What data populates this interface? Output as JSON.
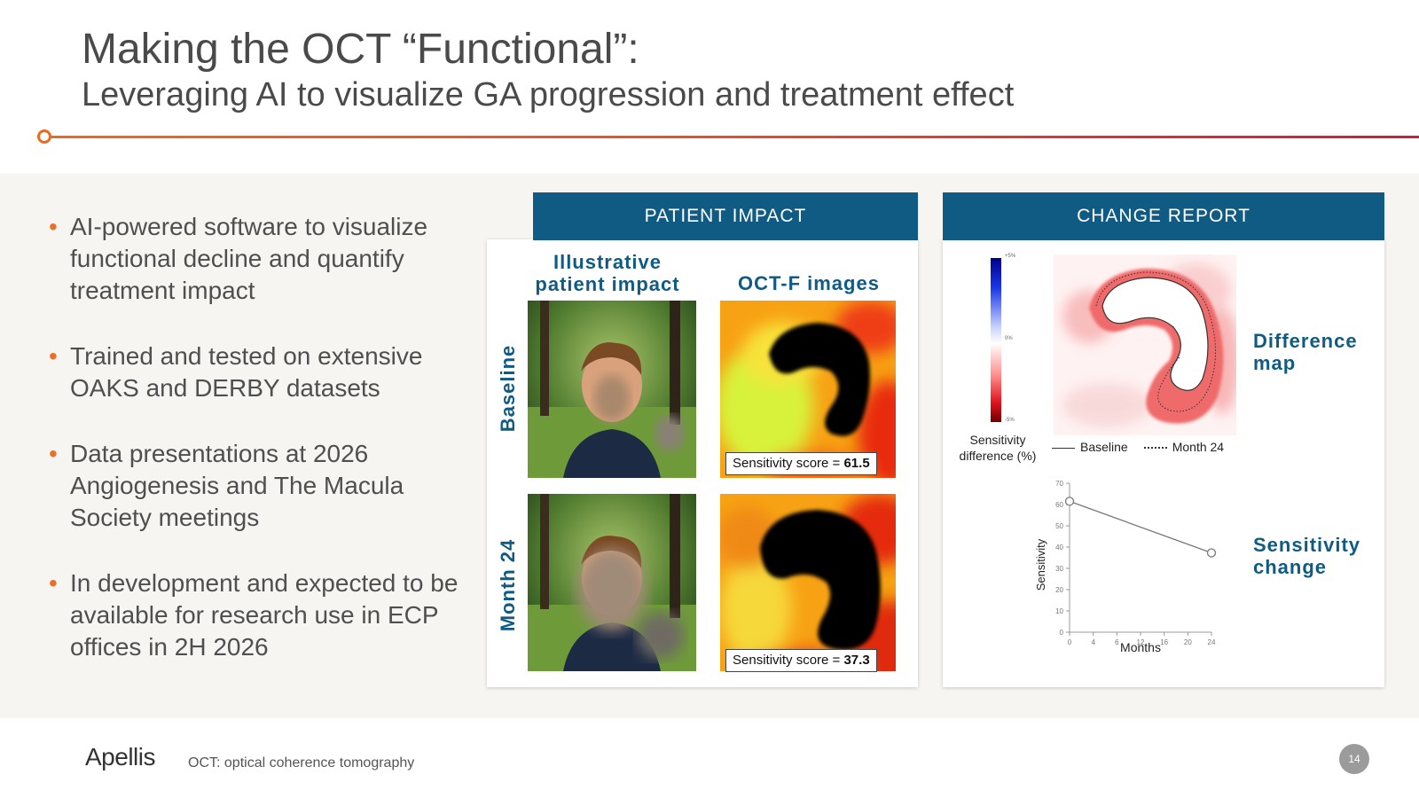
{
  "header": {
    "title": "Making the OCT “Functional”:",
    "subtitle": "Leveraging AI to visualize GA progression and treatment effect"
  },
  "bullets": [
    "AI-powered software to visualize functional decline and quantify treatment impact",
    "Trained and tested on extensive OAKS and DERBY datasets",
    "Data presentations at 2026 Angiogenesis and The Macula Society meetings",
    "In development and expected to be available for research use in ECP offices in 2H 2026"
  ],
  "patient_impact": {
    "header": "PATIENT IMPACT",
    "col_illustrative": "Illustrative patient impact",
    "col_octf": "OCT-F images",
    "row_baseline": "Baseline",
    "row_month24": "Month 24",
    "score_label": "Sensitivity score =",
    "score_baseline": "61.5",
    "score_month24": "37.3"
  },
  "change_report": {
    "header": "CHANGE REPORT",
    "colorbar_label": "Sensitivity difference (%)",
    "colorbar_ticks": [
      "+5%",
      "0%",
      "-5%"
    ],
    "legend_baseline": "Baseline",
    "legend_month24": "Month 24",
    "difference_map_label": "Difference map",
    "sensitivity_change_label": "Sensitivity change"
  },
  "chart_data": {
    "type": "line",
    "xlabel": "Months",
    "ylabel": "Sensitivity",
    "x_ticks": [
      "0",
      "4",
      "6",
      "12",
      "16",
      "20",
      "24"
    ],
    "y_ticks": [
      "0",
      "10",
      "20",
      "30",
      "40",
      "50",
      "60",
      "70"
    ],
    "ylim": [
      0,
      70
    ],
    "series": [
      {
        "x": [
          0,
          24
        ],
        "y": [
          61.5,
          37.3
        ]
      }
    ]
  },
  "footer": {
    "logo": "Apellis",
    "footnote": "OCT: optical coherence tomography",
    "page": "14"
  }
}
